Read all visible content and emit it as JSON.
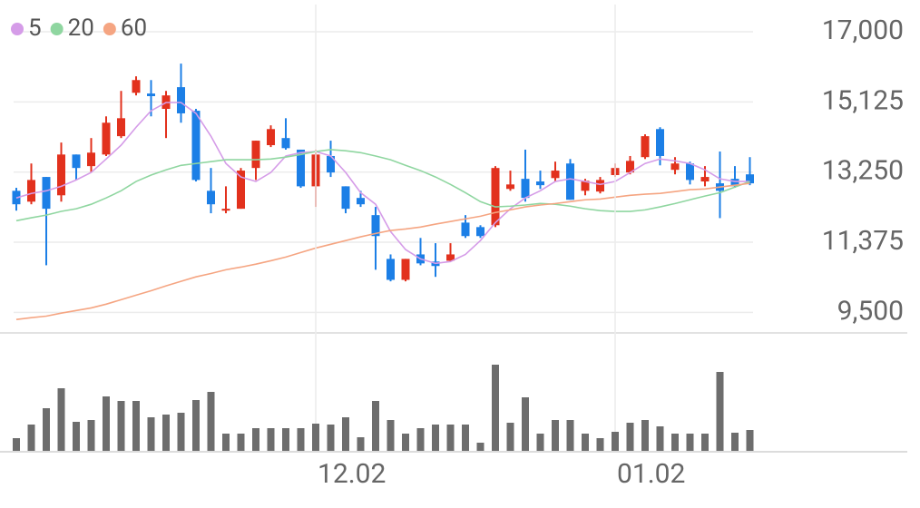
{
  "chart_data": [
    {
      "type": "candlestick",
      "open": [
        12750,
        12460,
        13120,
        12630,
        13720,
        13410,
        13720,
        14210,
        15370,
        15350,
        14940,
        15520,
        14890,
        12750,
        12220,
        12270,
        13360,
        13970,
        14160,
        13850,
        12870,
        13680,
        12870,
        12560,
        12100,
        10930,
        10370,
        11050,
        10860,
        10880,
        11900,
        11780,
        11830,
        12800,
        13070,
        13000,
        13090,
        13480,
        12750,
        12730,
        13170,
        13240,
        13650,
        14400,
        13310,
        13480,
        13000,
        12950,
        13070,
        13190
      ],
      "high": [
        12830,
        13480,
        13120,
        14040,
        13720,
        14160,
        14740,
        15420,
        15810,
        15710,
        15420,
        16150,
        14940,
        13360,
        12870,
        13360,
        14090,
        14500,
        14690,
        13850,
        13850,
        14090,
        12870,
        12750,
        12320,
        11050,
        10930,
        11490,
        11350,
        11350,
        12100,
        11830,
        13410,
        13290,
        13850,
        13290,
        13530,
        13600,
        13070,
        13120,
        13480,
        13680,
        14260,
        14450,
        13650,
        13530,
        13410,
        13800,
        13410,
        13650
      ],
      "low": [
        12220,
        12390,
        10760,
        12460,
        13040,
        13240,
        13680,
        14160,
        15300,
        14740,
        14160,
        14570,
        13000,
        12150,
        12150,
        12270,
        13040,
        13920,
        13850,
        12830,
        12320,
        13120,
        12150,
        12320,
        10640,
        10330,
        10330,
        10760,
        10450,
        10860,
        11490,
        11490,
        11780,
        12750,
        12460,
        12800,
        13000,
        12510,
        12630,
        12680,
        13120,
        13190,
        13600,
        13430,
        13190,
        12920,
        12870,
        12020,
        12830,
        12900
      ],
      "close": [
        12390,
        13040,
        12270,
        13720,
        13360,
        13770,
        14570,
        14690,
        15710,
        15280,
        15300,
        14820,
        13040,
        12390,
        12270,
        13290,
        14090,
        14400,
        13890,
        12870,
        13720,
        13240,
        12270,
        12390,
        11540,
        10370,
        10930,
        10810,
        10740,
        11050,
        11540,
        11540,
        13360,
        12920,
        12560,
        12900,
        13290,
        12510,
        13020,
        13040,
        13360,
        13550,
        14210,
        13680,
        13480,
        13040,
        13120,
        12750,
        12870,
        12950
      ],
      "up_color": "#e2311d",
      "down_color": "#1c7fe6",
      "series": [
        {
          "name": "5",
          "color": "#d59ce8",
          "values": [
            12560,
            12680,
            12750,
            12870,
            13040,
            13240,
            13600,
            13970,
            14450,
            14890,
            15110,
            15110,
            14820,
            14210,
            13480,
            13120,
            13000,
            13240,
            13680,
            13770,
            13800,
            13680,
            13240,
            12700,
            12390,
            11660,
            11180,
            10930,
            10810,
            10860,
            11050,
            11420,
            11900,
            12270,
            12560,
            12750,
            13000,
            13070,
            13000,
            12920,
            13000,
            13240,
            13480,
            13600,
            13550,
            13480,
            13310,
            13070,
            13000,
            13000
          ]
        },
        {
          "name": "20",
          "color": "#8fd6a0",
          "values": [
            11950,
            12030,
            12100,
            12200,
            12270,
            12390,
            12560,
            12750,
            13000,
            13170,
            13310,
            13430,
            13480,
            13530,
            13580,
            13580,
            13580,
            13600,
            13650,
            13720,
            13800,
            13850,
            13820,
            13770,
            13680,
            13580,
            13430,
            13290,
            13120,
            12920,
            12700,
            12460,
            12320,
            12340,
            12370,
            12410,
            12390,
            12340,
            12270,
            12220,
            12200,
            12200,
            12240,
            12320,
            12410,
            12510,
            12610,
            12700,
            12850,
            13000
          ]
        },
        {
          "name": "60",
          "color": "#f5a582",
          "values": [
            9310,
            9360,
            9400,
            9480,
            9550,
            9620,
            9720,
            9840,
            9960,
            10080,
            10210,
            10330,
            10450,
            10540,
            10640,
            10710,
            10790,
            10880,
            10980,
            11100,
            11220,
            11320,
            11420,
            11520,
            11610,
            11690,
            11730,
            11780,
            11860,
            11930,
            12000,
            12070,
            12170,
            12240,
            12320,
            12370,
            12410,
            12460,
            12510,
            12530,
            12580,
            12630,
            12660,
            12680,
            12730,
            12780,
            12800,
            12850,
            12900,
            12950
          ]
        }
      ],
      "ylim": [
        9000,
        17850
      ],
      "yticks": [
        {
          "value": 9500,
          "label": "9,500"
        },
        {
          "value": 11375,
          "label": "11,375"
        },
        {
          "value": 13250,
          "label": "13,250"
        },
        {
          "value": 15125,
          "label": "15,125"
        },
        {
          "value": 17000,
          "label": "17,000"
        }
      ],
      "legend": "top-left",
      "grid": true
    },
    {
      "type": "bar",
      "categories": [
        null,
        null,
        null,
        null,
        null,
        null,
        null,
        null,
        null,
        null,
        null,
        null,
        null,
        null,
        null,
        null,
        null,
        null,
        null,
        null,
        "12.02",
        null,
        null,
        null,
        null,
        null,
        null,
        null,
        null,
        null,
        null,
        null,
        null,
        null,
        null,
        null,
        null,
        null,
        null,
        null,
        "01.02",
        null,
        null,
        null,
        null,
        null,
        null,
        null,
        null,
        null
      ],
      "values": [
        14,
        29,
        47,
        69,
        32,
        34,
        60,
        55,
        55,
        37,
        40,
        42,
        56,
        65,
        19,
        19,
        25,
        25,
        25,
        25,
        30,
        29,
        37,
        15,
        55,
        34,
        19,
        25,
        29,
        29,
        29,
        9,
        95,
        31,
        59,
        19,
        34,
        34,
        19,
        14,
        21,
        31,
        34,
        27,
        19,
        19,
        19,
        87,
        20,
        23
      ],
      "color": "#6d6d6d",
      "ylim": [
        0,
        100
      ]
    }
  ]
}
